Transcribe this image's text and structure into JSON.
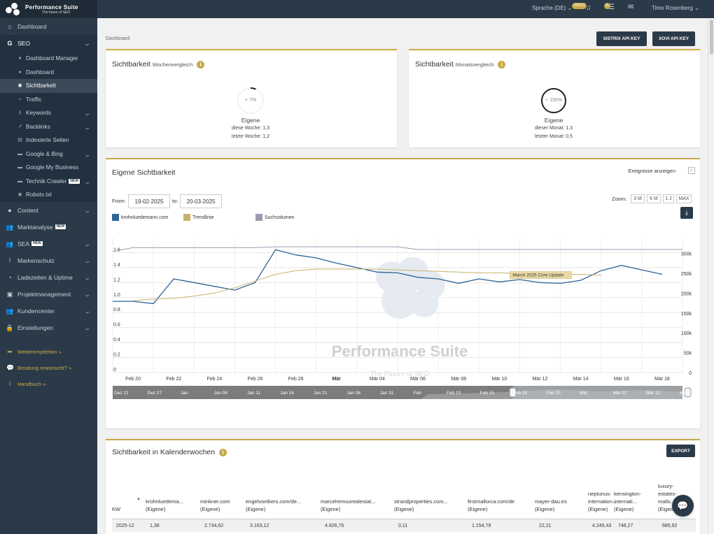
{
  "app": {
    "logo_title": "Performance Suite",
    "logo_sub": "The future of SEO"
  },
  "topbar": {
    "language": "Sprache (DE)",
    "credits_badge": "20010",
    "notif_badge": "5",
    "user": "Timo Rosenberg"
  },
  "sidebar": {
    "dashboard": "Dashboard",
    "seo": "SEO",
    "seo_items": [
      {
        "label": "Dashboard Manager",
        "icon": "gauge-icon"
      },
      {
        "label": "Dashboard",
        "icon": "gauge-icon"
      },
      {
        "label": "Sichtbarkeit",
        "icon": "eye-icon"
      },
      {
        "label": "Traffic",
        "icon": "traffic-icon"
      },
      {
        "label": "Keywords",
        "icon": "key-icon"
      },
      {
        "label": "Backlinks",
        "icon": "link-icon"
      },
      {
        "label": "Indexierte Seiten",
        "icon": "page-icon"
      },
      {
        "label": "Google & Bing",
        "icon": "folder-icon"
      },
      {
        "label": "Google My Business",
        "icon": "folder-icon"
      },
      {
        "label": "Technik Crawler",
        "icon": "folder-icon"
      },
      {
        "label": "Robots.txt",
        "icon": "eye-icon"
      }
    ],
    "new_tag": "NEW",
    "sections": [
      "Content",
      "Marktanalyse",
      "SEA",
      "Markenschutz",
      "Ladezeiten & Uptime",
      "Projektmanagement",
      "Kundencenter",
      "Einstellungen"
    ],
    "links": [
      "Weiterempfehlen »",
      "Beratung erwünscht? »",
      "Handbuch »"
    ]
  },
  "breadcrumb": "Dashboard",
  "buttons": {
    "sistrix": "SISTRIX API KEY",
    "xovi": "XOVI API KEY",
    "export": "EXPORT"
  },
  "week_card": {
    "title": "Sichtbarkeit",
    "subtitle": "Wochenvergleich",
    "gauge": "+ 7%",
    "label": "Eigene",
    "line1": "diese Woche: 1,3",
    "line2": "letzte Woche: 1,2"
  },
  "month_card": {
    "title": "Sichtbarkeit",
    "subtitle": "Monatsvergleich",
    "gauge": "+ 150%",
    "label": "Eigene",
    "line1": "dieser Monat: 1,3",
    "line2": "letzter Monat: 0,5"
  },
  "chart_card": {
    "title": "Eigene Sichtbarkeit",
    "events_label": "Ereignisse anzeigen",
    "from_label": "From:",
    "from_value": "19-02-2025",
    "to_label": "to:",
    "to_value": "20-03-2025",
    "zoom_label": "Zoom:",
    "zoom_options": [
      "3 M",
      "6 M",
      "1 J",
      "MAX"
    ],
    "annotation": "March 2025 Core Update",
    "watermark_title": "Performance Suite",
    "watermark_sub": "The Future of SEO",
    "navigator_labels": [
      "Dez 22",
      "Dez 27",
      "Jan",
      "Jan 06",
      "Jan 11",
      "Jan 16",
      "Jan 21",
      "Jan 26",
      "Jan 31",
      "Feb",
      "Feb 10",
      "Feb 15",
      "Feb 20",
      "Feb 25",
      "Mär",
      "Mär 07",
      "Mär 12",
      "Mär 17"
    ]
  },
  "chart_data": {
    "type": "line",
    "x": [
      "Feb 19",
      "Feb 20",
      "Feb 21",
      "Feb 22",
      "Feb 23",
      "Feb 24",
      "Feb 25",
      "Feb 26",
      "Feb 27",
      "Feb 28",
      "Mär 01",
      "Mär 02",
      "Mär 03",
      "Mär 04",
      "Mär 05",
      "Mär 06",
      "Mär 07",
      "Mär 08",
      "Mär 09",
      "Mär 10",
      "Mär 11",
      "Mär 12",
      "Mär 13",
      "Mär 14",
      "Mär 15",
      "Mär 16",
      "Mär 17",
      "Mär 18",
      "Mär 19"
    ],
    "x_tick_labels": [
      "Feb 20",
      "Feb 22",
      "Feb 24",
      "Feb 26",
      "Feb 28",
      "Mär",
      "Mär 04",
      "Mär 06",
      "Mär 08",
      "Mär 10",
      "Mär 12",
      "Mär 14",
      "Mär 16",
      "Mär 18"
    ],
    "series": [
      {
        "name": "krohnluedemann.com",
        "color": "#2f6496",
        "axis": "left",
        "values": [
          0.95,
          0.95,
          0.92,
          1.25,
          1.2,
          1.15,
          1.1,
          1.2,
          1.64,
          1.57,
          1.53,
          1.46,
          1.4,
          1.34,
          1.33,
          1.27,
          1.25,
          1.19,
          1.25,
          1.21,
          1.24,
          1.2,
          1.19,
          1.23,
          1.36,
          1.43,
          1.37,
          1.31,
          null
        ]
      },
      {
        "name": "Trendlinie",
        "color": "#c8b26e",
        "axis": "left",
        "values": [
          null,
          0.96,
          0.98,
          0.99,
          1.02,
          1.06,
          1.13,
          1.22,
          1.31,
          1.36,
          1.38,
          1.38,
          1.38,
          1.38,
          1.37,
          1.36,
          1.35,
          1.34,
          1.33,
          1.33,
          1.32,
          1.32,
          1.31,
          1.31,
          1.3,
          null,
          null,
          null,
          null
        ]
      },
      {
        "name": "Suchvolumen",
        "color": "#9a9ab0",
        "axis": "right",
        "values": [
          305000,
          315000,
          315000,
          315000,
          315000,
          315000,
          315000,
          315000,
          317000,
          317000,
          317000,
          317000,
          317000,
          317000,
          317000,
          310000,
          310000,
          310000,
          310000,
          310000,
          310000,
          310000,
          310000,
          310000,
          310000,
          310000,
          310000,
          310000,
          310000
        ]
      }
    ],
    "y_left_ticks": [
      "0",
      "0.2",
      "0.4",
      "0.6",
      "0.8",
      "1.0",
      "1.2",
      "1.4",
      "1.6"
    ],
    "y_right_ticks": [
      "0",
      "50k",
      "100k",
      "150k",
      "200k",
      "250k",
      "300k"
    ],
    "ylim_left": [
      0,
      1.8
    ],
    "ylim_right": [
      0,
      340000
    ],
    "legend_position": "top-left",
    "grid": true
  },
  "kw_card": {
    "title": "Sichtbarkeit in Kalenderwochen",
    "columns": [
      {
        "name": "KW",
        "sub": ""
      },
      {
        "name": "krohnluedema...",
        "sub": "(Eigene)"
      },
      {
        "name": "minkner.com",
        "sub": "(Eigene)"
      },
      {
        "name": "engelvoelkers.com/de...",
        "sub": "(Eigene)"
      },
      {
        "name": "marcelremusrealestat...",
        "sub": "(Eigene)"
      },
      {
        "name": "strandproperties.com...",
        "sub": "(Eigene)"
      },
      {
        "name": "firstmallorca.com/de",
        "sub": "(Eigene)"
      },
      {
        "name": "mayer-dau.es",
        "sub": "(Eigene)"
      },
      {
        "name": "neptunus-internation...",
        "sub": "(Eigene)"
      },
      {
        "name": "kensington-internati...",
        "sub": "(Eigene)"
      },
      {
        "name": "luxury-estates-mallo...",
        "sub": "(Eigene)"
      }
    ],
    "rows": [
      [
        "2025-12",
        "1,38",
        "2.734,62",
        "3.163,12",
        "4.826,75",
        "0,11",
        "1.154,79",
        "22,21",
        "4.245,43",
        "746,27",
        "685,92"
      ]
    ]
  },
  "colors": {
    "sidebar": "#2b3a48",
    "accent": "#c8a94a",
    "line": "#2f6496"
  }
}
